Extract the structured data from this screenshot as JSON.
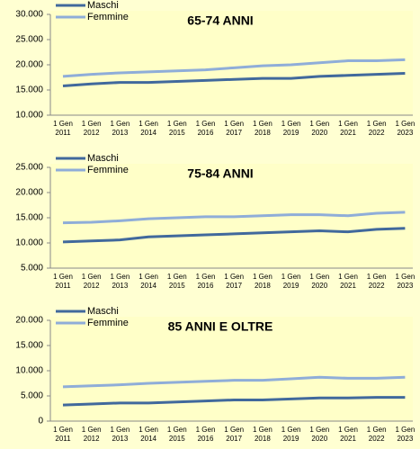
{
  "chart_data": [
    {
      "type": "line",
      "title": "65-74 ANNI",
      "categories": [
        "1 Gen\n2011",
        "1 Gen\n2012",
        "1 Gen\n2013",
        "1 Gen\n2014",
        "1 Gen\n2015",
        "1 Gen\n2016",
        "1 Gen\n2017",
        "1 Gen\n2018",
        "1 Gen\n2019",
        "1 Gen\n2020",
        "1 Gen\n2021",
        "1 Gen\n2022",
        "1 Gen\n2023"
      ],
      "series": [
        {
          "name": "Maschi",
          "color": "#41699c",
          "values": [
            15800,
            16200,
            16500,
            16500,
            16700,
            16900,
            17100,
            17300,
            17300,
            17700,
            17900,
            18100,
            18300
          ]
        },
        {
          "name": "Femmine",
          "color": "#8fadd8",
          "values": [
            17700,
            18100,
            18400,
            18600,
            18800,
            19000,
            19400,
            19800,
            20000,
            20400,
            20800,
            20800,
            21000
          ]
        }
      ],
      "ylim": [
        10000,
        30000
      ],
      "yticks": [
        {
          "value": 10000,
          "label": "10.000"
        },
        {
          "value": 15000,
          "label": "15.000"
        },
        {
          "value": 20000,
          "label": "20.000"
        },
        {
          "value": 25000,
          "label": "25.000"
        },
        {
          "value": 30000,
          "label": "30.000"
        }
      ]
    },
    {
      "type": "line",
      "title": "75-84 ANNI",
      "categories": [
        "1 Gen\n2011",
        "1 Gen\n2012",
        "1 Gen\n2013",
        "1 Gen\n2014",
        "1 Gen\n2015",
        "1 Gen\n2016",
        "1 Gen\n2017",
        "1 Gen\n2018",
        "1 Gen\n2019",
        "1 Gen\n2020",
        "1 Gen\n2021",
        "1 Gen\n2022",
        "1 Gen\n2023"
      ],
      "series": [
        {
          "name": "Maschi",
          "color": "#41699c",
          "values": [
            10200,
            10400,
            10600,
            11200,
            11400,
            11600,
            11800,
            12000,
            12200,
            12400,
            12200,
            12700,
            12900
          ]
        },
        {
          "name": "Femmine",
          "color": "#8fadd8",
          "values": [
            14000,
            14100,
            14400,
            14800,
            15000,
            15200,
            15200,
            15400,
            15600,
            15600,
            15400,
            15900,
            16100
          ]
        }
      ],
      "ylim": [
        5000,
        25000
      ],
      "yticks": [
        {
          "value": 5000,
          "label": "5.000"
        },
        {
          "value": 10000,
          "label": "10.000"
        },
        {
          "value": 15000,
          "label": "15.000"
        },
        {
          "value": 20000,
          "label": "20.000"
        },
        {
          "value": 25000,
          "label": "25.000"
        }
      ]
    },
    {
      "type": "line",
      "title": "85 ANNI E OLTRE",
      "categories": [
        "1 Gen\n2011",
        "1 Gen\n2012",
        "1 Gen\n2013",
        "1 Gen\n2014",
        "1 Gen\n2015",
        "1 Gen\n2016",
        "1 Gen\n2017",
        "1 Gen\n2018",
        "1 Gen\n2019",
        "1 Gen\n2020",
        "1 Gen\n2021",
        "1 Gen\n2022",
        "1 Gen\n2023"
      ],
      "series": [
        {
          "name": "Maschi",
          "color": "#41699c",
          "values": [
            3200,
            3400,
            3600,
            3600,
            3800,
            4000,
            4200,
            4200,
            4400,
            4600,
            4600,
            4700,
            4700
          ]
        },
        {
          "name": "Femmine",
          "color": "#8fadd8",
          "values": [
            6800,
            7000,
            7200,
            7500,
            7700,
            7900,
            8100,
            8100,
            8400,
            8700,
            8500,
            8500,
            8700
          ]
        }
      ],
      "ylim": [
        0,
        20000
      ],
      "yticks": [
        0,
        {
          "value": 5000,
          "label": "5.000"
        },
        {
          "value": 10000,
          "label": "10.000"
        },
        {
          "value": 15000,
          "label": "15.000"
        },
        {
          "value": 20000,
          "label": "20.000"
        }
      ]
    }
  ]
}
